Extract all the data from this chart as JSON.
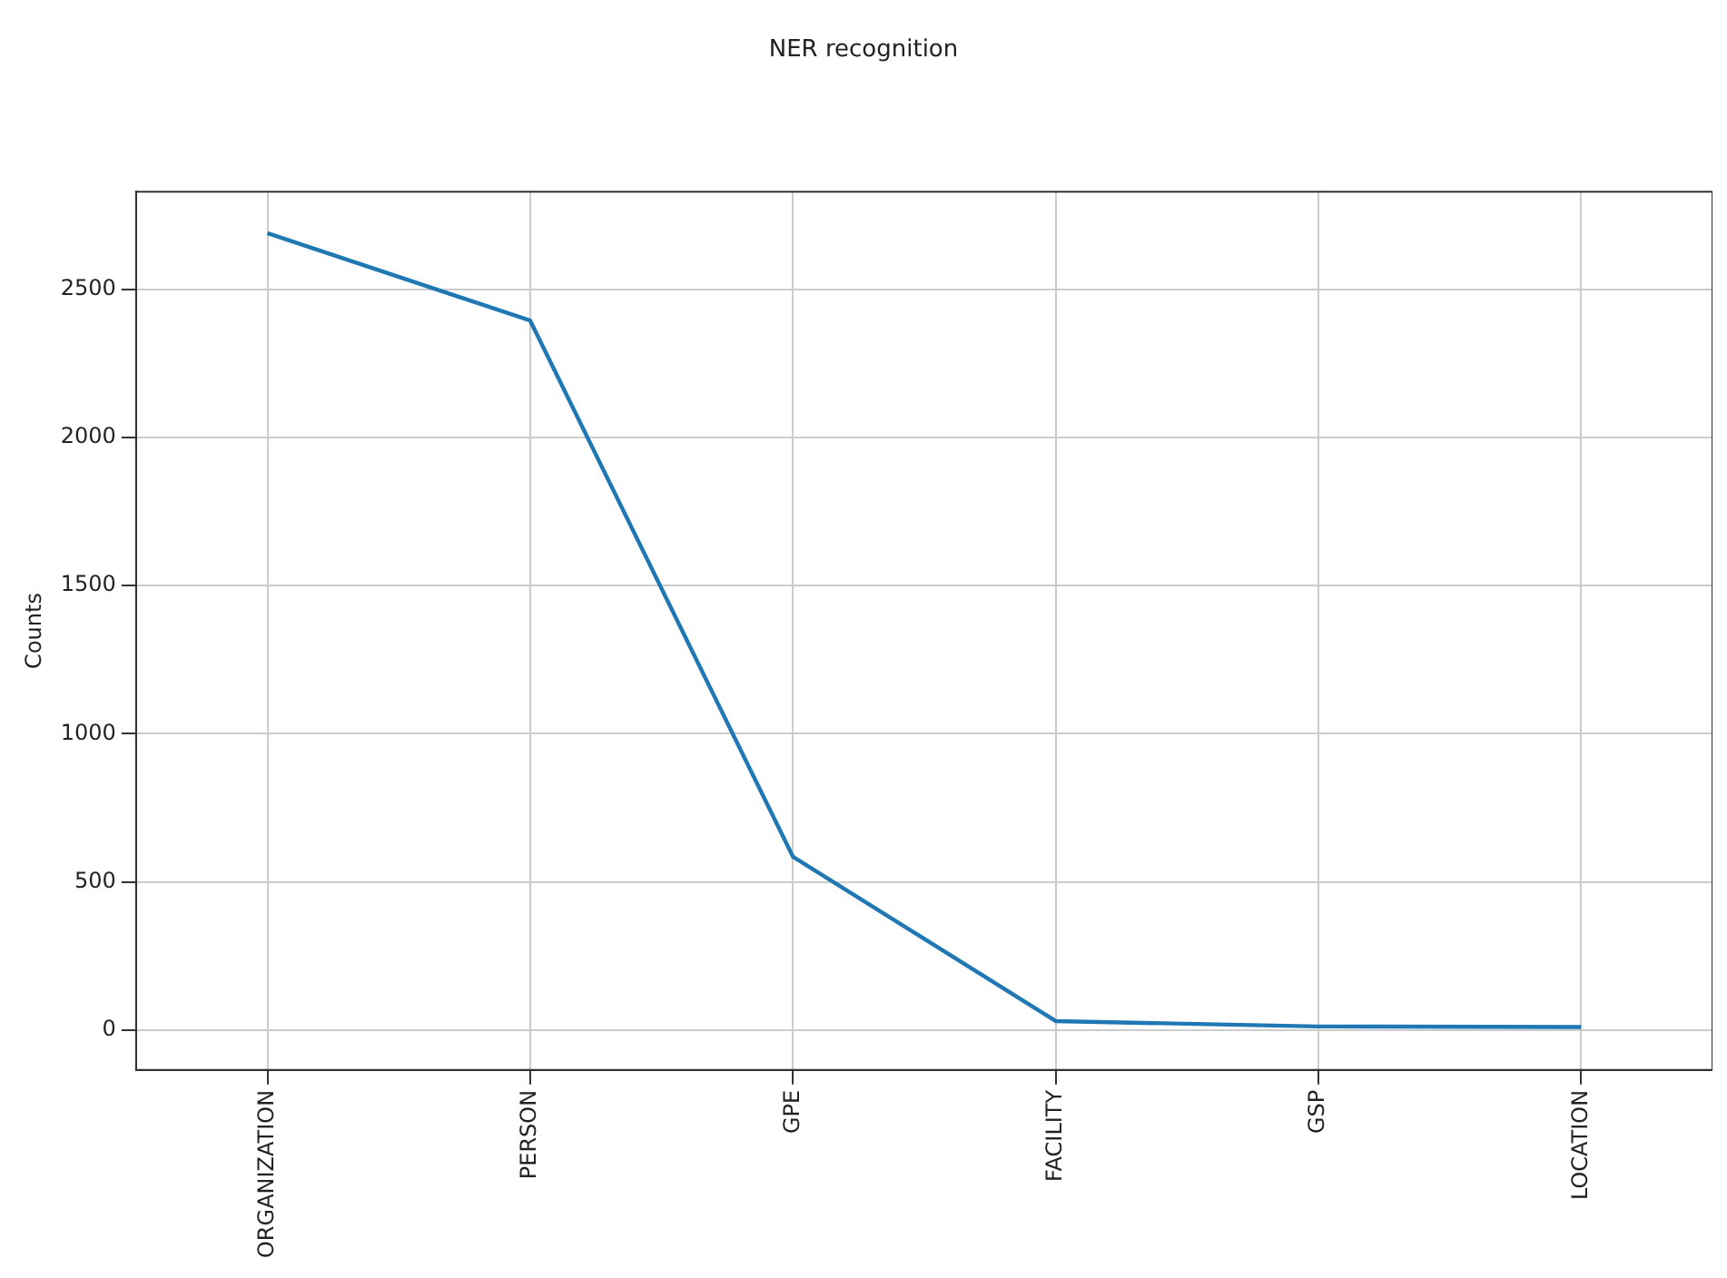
{
  "chart_data": {
    "type": "line",
    "title": "NER recognition",
    "ylabel": "Counts",
    "categories": [
      "ORGANIZATION",
      "PERSON",
      "GPE",
      "FACILITY",
      "GSP",
      "LOCATION"
    ],
    "series": [
      {
        "color": "#1f77b4",
        "values": [
          2690,
          2395,
          585,
          30,
          12,
          10
        ]
      }
    ],
    "ylim": [
      -135,
      2830
    ],
    "yticks": [
      0,
      500,
      1000,
      1500,
      2000,
      2500
    ],
    "grid": true,
    "legend": false,
    "marker": "none",
    "line_style": "solid"
  }
}
